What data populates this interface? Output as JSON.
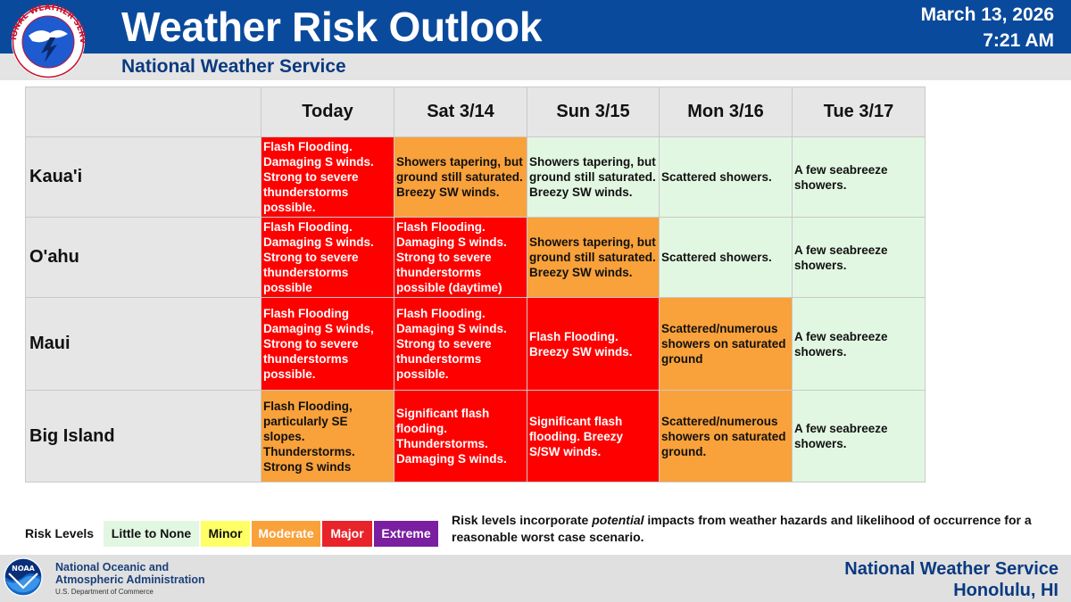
{
  "header": {
    "title": "Weather Risk Outlook",
    "subtitle": "National Weather Service",
    "date": "March 13, 2026",
    "time": "7:21 AM",
    "logo_text": "NATIONAL WEATHER SERVICE",
    "bar_color": "#0a4a9c"
  },
  "table": {
    "days": [
      "Today",
      "Sat 3/14",
      "Sun 3/15",
      "Mon 3/16",
      "Tue 3/17"
    ],
    "rows": [
      {
        "island": "Kaua'i",
        "cells": [
          {
            "level": "Major",
            "text": "Flash Flooding. Damaging S winds. Strong to severe thunderstorms possible."
          },
          {
            "level": "Moderate",
            "text": "Showers tapering, but ground still saturated. Breezy SW winds."
          },
          {
            "level": "Little to None",
            "text": "Showers tapering, but ground still saturated. Breezy SW winds."
          },
          {
            "level": "Little to None",
            "text": "Scattered showers."
          },
          {
            "level": "Little to None",
            "text": "A few seabreeze showers."
          }
        ]
      },
      {
        "island": "O'ahu",
        "cells": [
          {
            "level": "Major",
            "text": "Flash Flooding. Damaging S winds. Strong to severe thunderstorms possible"
          },
          {
            "level": "Major",
            "text": "Flash Flooding. Damaging S winds. Strong to severe thunderstorms possible (daytime)"
          },
          {
            "level": "Moderate",
            "text": "Showers tapering, but ground still saturated. Breezy SW winds."
          },
          {
            "level": "Little to None",
            "text": "Scattered showers."
          },
          {
            "level": "Little to None",
            "text": "A few seabreeze showers."
          }
        ]
      },
      {
        "island": "Maui",
        "cells": [
          {
            "level": "Major",
            "text": "Flash Flooding Damaging S winds, Strong to severe thunderstorms possible."
          },
          {
            "level": "Major",
            "text": "Flash Flooding. Damaging S winds. Strong to severe thunderstorms possible."
          },
          {
            "level": "Major",
            "text": "Flash Flooding. Breezy SW winds."
          },
          {
            "level": "Moderate",
            "text": "Scattered/numerous showers on saturated ground"
          },
          {
            "level": "Little to None",
            "text": "A few seabreeze showers."
          }
        ]
      },
      {
        "island": "Big Island",
        "cells": [
          {
            "level": "Moderate",
            "text": "Flash Flooding, particularly SE slopes. Thunderstorms. Strong S winds"
          },
          {
            "level": "Major",
            "text": "Significant flash flooding. Thunderstorms. Damaging S winds."
          },
          {
            "level": "Major",
            "text": "Significant flash flooding. Breezy S/SW winds."
          },
          {
            "level": "Moderate",
            "text": "Scattered/numerous showers on saturated ground."
          },
          {
            "level": "Little to None",
            "text": " A few seabreeze showers."
          }
        ]
      }
    ]
  },
  "legend": {
    "label": "Risk Levels",
    "levels": [
      {
        "name": "Little to None",
        "color": "#e2f7e2",
        "text_color": "#111111"
      },
      {
        "name": "Minor",
        "color": "#ffff66",
        "text_color": "#111111"
      },
      {
        "name": "Moderate",
        "color": "#f9a13a",
        "text_color": "#ffffff"
      },
      {
        "name": "Major",
        "color": "#e8232a",
        "text_color": "#ffffff"
      },
      {
        "name": "Extreme",
        "color": "#7a1fa0",
        "text_color": "#ffffff"
      }
    ],
    "note_before": "Risk levels incorporate ",
    "note_em": "potential",
    "note_after": " impacts from weather hazards and likelihood of occurrence for a reasonable worst case scenario."
  },
  "footer": {
    "noaa_logo_text": "NOAA",
    "noaa_line1": "National Oceanic and",
    "noaa_line2": "Atmospheric Administration",
    "noaa_dept": "U.S. Department of Commerce",
    "office_line1": "National Weather Service",
    "office_line2": "Honolulu, HI"
  }
}
